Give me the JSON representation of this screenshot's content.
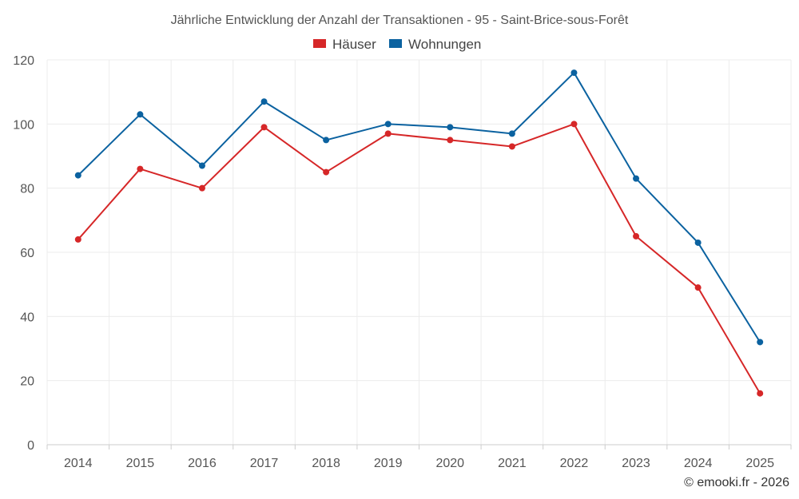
{
  "chart_data": {
    "type": "line",
    "title": "Jährliche Entwicklung der Anzahl der Transaktionen - 95 - Saint-Brice-sous-Forêt",
    "categories": [
      "2014",
      "2015",
      "2016",
      "2017",
      "2018",
      "2019",
      "2020",
      "2021",
      "2022",
      "2023",
      "2024",
      "2025"
    ],
    "series": [
      {
        "name": "Häuser",
        "color": "#d62728",
        "values": [
          64,
          86,
          80,
          99,
          85,
          97,
          95,
          93,
          100,
          65,
          49,
          16
        ]
      },
      {
        "name": "Wohnungen",
        "color": "#0b62a0",
        "values": [
          84,
          103,
          87,
          107,
          95,
          100,
          99,
          97,
          116,
          83,
          63,
          32
        ]
      }
    ],
    "ylim": [
      0,
      120
    ],
    "yticks": [
      0,
      20,
      40,
      60,
      80,
      100,
      120
    ],
    "xlabel": "",
    "ylabel": "",
    "grid": true,
    "legend": "top-center"
  },
  "credit": "© emooki.fr - 2026"
}
